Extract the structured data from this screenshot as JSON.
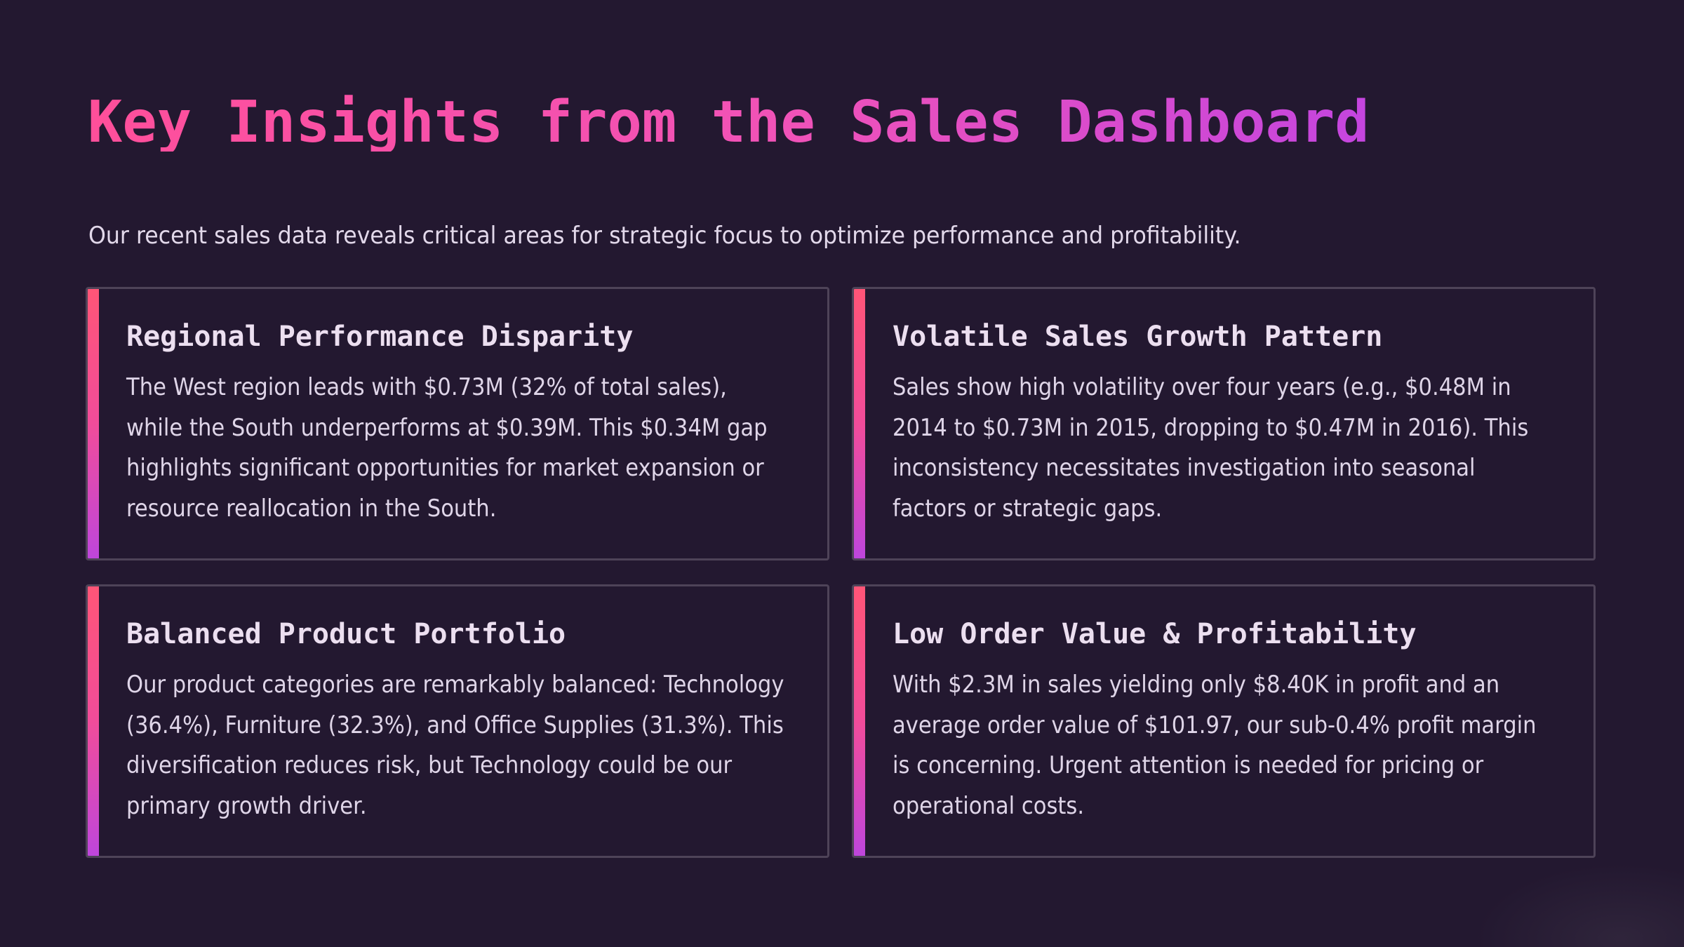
{
  "title": "Key Insights from the Sales Dashboard",
  "subtitle": "Our recent sales data reveals critical areas for strategic focus to optimize performance and profitability.",
  "cards": [
    {
      "title": "Regional Performance Disparity",
      "body": "The West region leads with $0.73M (32% of total sales), while the South underperforms at $0.39M. This $0.34M gap highlights significant opportunities for market expansion or resource reallocation in the South."
    },
    {
      "title": "Volatile Sales Growth Pattern",
      "body": "Sales show high volatility over four years (e.g., $0.48M in 2014 to $0.73M in 2015, dropping to $0.47M in 2016). This inconsistency necessitates investigation into seasonal factors or strategic gaps."
    },
    {
      "title": "Balanced Product Portfolio",
      "body": "Our product categories are remarkably balanced: Technology (36.4%), Furniture (32.3%), and Office Supplies (31.3%). This diversification reduces risk, but Technology could be our primary growth driver."
    },
    {
      "title": "Low Order Value & Profitability",
      "body": "With $2.3M in sales yielding only $8.40K in profit and an average order value of $101.97, our sub-0.4% profit margin is concerning. Urgent attention is needed for pricing or operational costs."
    }
  ],
  "colors": {
    "background": "#231830",
    "title_gradient_start": "#ff4f9a",
    "title_gradient_end": "#c445df",
    "accent_top": "#ff5577",
    "accent_bottom": "#be46dc",
    "card_border": "#4e4358",
    "text": "#e6dced"
  }
}
